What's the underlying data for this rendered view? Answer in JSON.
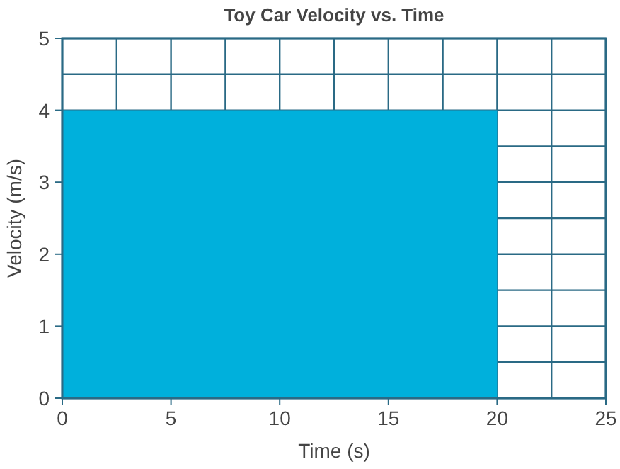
{
  "chart_data": {
    "type": "area",
    "title": "Toy Car Velocity vs. Time",
    "xlabel": "Time (s)",
    "ylabel": "Velocity (m/s)",
    "x": [
      0,
      20
    ],
    "series": [
      {
        "color": "#00b0dc",
        "values": [
          4,
          4
        ]
      }
    ],
    "xlim": [
      0,
      25
    ],
    "ylim": [
      0,
      5
    ],
    "xticks": [
      0,
      {
        "value": 2.5,
        "label": null
      },
      5,
      {
        "value": 7.5,
        "label": null
      },
      10,
      {
        "value": 12.5,
        "label": null
      },
      15,
      {
        "value": 17.5,
        "label": null
      },
      20,
      {
        "value": 22.5,
        "label": null
      },
      25
    ],
    "yticks": [
      0,
      {
        "value": 0.5,
        "label": null
      },
      1,
      {
        "value": 1.5,
        "label": null
      },
      2,
      {
        "value": 2.5,
        "label": null
      },
      3,
      {
        "value": 3.5,
        "label": null
      },
      4,
      {
        "value": 4.5,
        "label": null
      },
      5
    ],
    "grid": true
  }
}
